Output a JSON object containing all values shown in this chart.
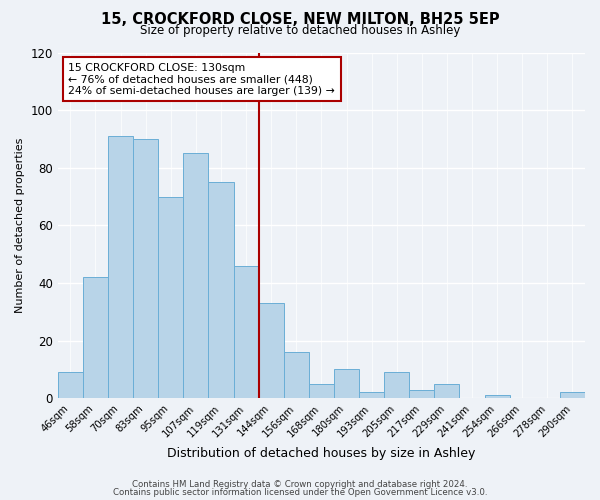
{
  "title": "15, CROCKFORD CLOSE, NEW MILTON, BH25 5EP",
  "subtitle": "Size of property relative to detached houses in Ashley",
  "xlabel": "Distribution of detached houses by size in Ashley",
  "ylabel": "Number of detached properties",
  "bar_color": "#b8d4e8",
  "bar_edge_color": "#6aaed6",
  "categories": [
    "46sqm",
    "58sqm",
    "70sqm",
    "83sqm",
    "95sqm",
    "107sqm",
    "119sqm",
    "131sqm",
    "144sqm",
    "156sqm",
    "168sqm",
    "180sqm",
    "193sqm",
    "205sqm",
    "217sqm",
    "229sqm",
    "241sqm",
    "254sqm",
    "266sqm",
    "278sqm",
    "290sqm"
  ],
  "values": [
    9,
    42,
    91,
    90,
    70,
    85,
    75,
    46,
    33,
    16,
    5,
    10,
    2,
    9,
    3,
    5,
    0,
    1,
    0,
    0,
    2
  ],
  "vline_index": 7,
  "vline_color": "#aa0000",
  "annotation_title": "15 CROCKFORD CLOSE: 130sqm",
  "annotation_line1": "← 76% of detached houses are smaller (448)",
  "annotation_line2": "24% of semi-detached houses are larger (139) →",
  "annotation_box_color": "#ffffff",
  "annotation_box_edge": "#aa0000",
  "ylim": [
    0,
    120
  ],
  "yticks": [
    0,
    20,
    40,
    60,
    80,
    100,
    120
  ],
  "footer1": "Contains HM Land Registry data © Crown copyright and database right 2024.",
  "footer2": "Contains public sector information licensed under the Open Government Licence v3.0.",
  "background_color": "#eef2f7",
  "grid_color": "#ffffff"
}
